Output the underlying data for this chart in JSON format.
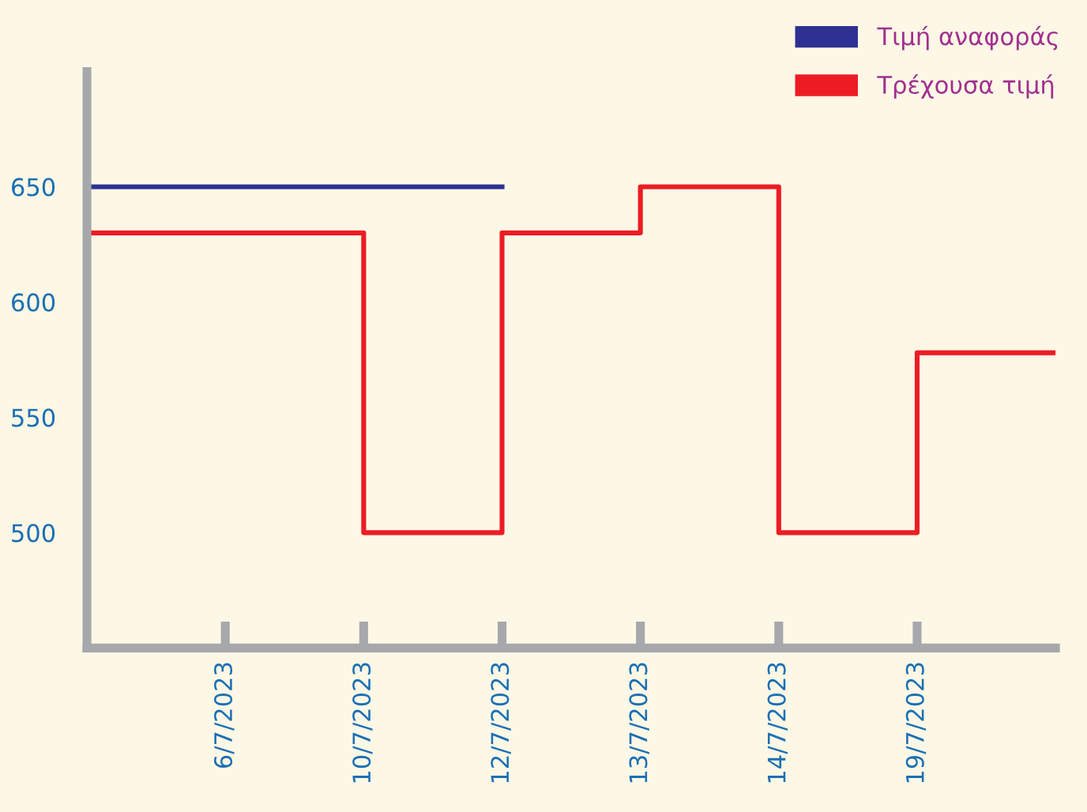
{
  "chart_data": {
    "type": "step",
    "categories": [
      null,
      "6/7/2023",
      "10/7/2023",
      "12/7/2023",
      "13/7/2023",
      "14/7/2023",
      "19/7/2023",
      null
    ],
    "ylim": [
      450,
      700
    ],
    "yticks": [
      500,
      550,
      600,
      650
    ],
    "series": [
      {
        "name": "Τιμή αναφοράς",
        "color": "#2e3192",
        "values": [
          650,
          650,
          650,
          650,
          null,
          null,
          null,
          null
        ]
      },
      {
        "name": "Τρέχουσα τιμή",
        "color": "#ed1c24",
        "values": [
          630,
          630,
          500,
          630,
          650,
          500,
          578,
          578
        ]
      }
    ],
    "legend": "top right",
    "grid": false
  }
}
